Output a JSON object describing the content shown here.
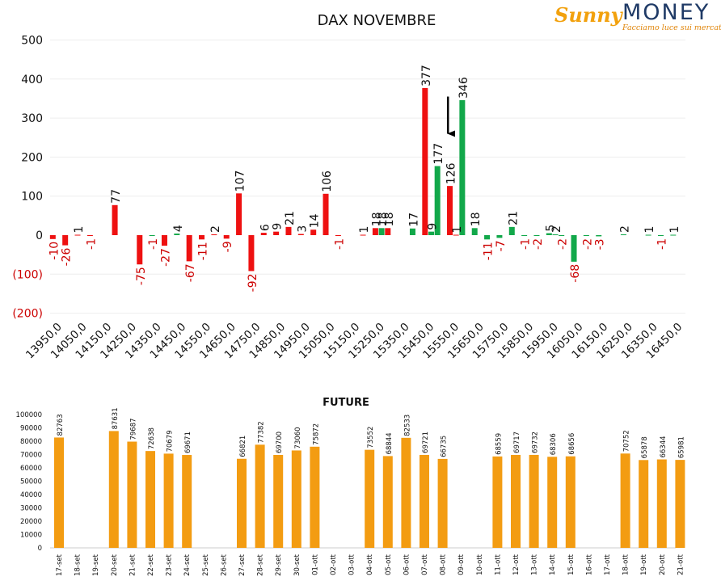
{
  "logo": {
    "brand_left": "Sunny",
    "brand_right": "MONEY",
    "tagline": "Facciamo luce sui mercati"
  },
  "colors": {
    "call": "#ee1111",
    "put": "#12a84a",
    "future": "#f39c12",
    "negative_axis": "#cc0000",
    "arrow": "#000000"
  },
  "chart_data": [
    {
      "type": "bar",
      "title": "DAX NOVEMBRE",
      "categories": [
        "13950,0",
        "14050,0",
        "14150,0",
        "14250,0",
        "14350,0",
        "14450,0",
        "14550,0",
        "14650,0",
        "14750,0",
        "14850,0",
        "14950,0",
        "15050,0",
        "15150,0",
        "15250,0",
        "15350,0",
        "15450,0",
        "15550,0",
        "15650,0",
        "15750,0",
        "15850,0",
        "15950,0",
        "16050,0",
        "16150,0",
        "16250,0",
        "16350,0",
        "16450,0"
      ],
      "y_ticks": [
        "500",
        "400",
        "300",
        "200",
        "100",
        "0",
        "(100)",
        "(200)"
      ],
      "ylim": [
        -200,
        500
      ],
      "grid": true,
      "bars": [
        {
          "i": 0,
          "s": 0,
          "o": -0.25,
          "v": -10,
          "label": "-10",
          "color": "call"
        },
        {
          "i": 0,
          "s": 1,
          "o": 0.25,
          "v": -26,
          "label": "-26",
          "color": "call"
        },
        {
          "i": 1,
          "s": 0,
          "o": -0.25,
          "v": 1,
          "label": "1",
          "color": "call"
        },
        {
          "i": 1,
          "s": 1,
          "o": 0.25,
          "v": -1,
          "label": "-1",
          "color": "call"
        },
        {
          "i": 2,
          "s": 0,
          "o": 0.25,
          "v": 77,
          "label": "77",
          "color": "call"
        },
        {
          "i": 3,
          "s": 0,
          "o": 0.25,
          "v": -75,
          "label": "-75",
          "color": "call"
        },
        {
          "i": 4,
          "s": 0,
          "o": -0.25,
          "v": -1,
          "label": "-1",
          "color": "put"
        },
        {
          "i": 4,
          "s": 1,
          "o": 0.25,
          "v": -27,
          "label": "-27",
          "color": "call"
        },
        {
          "i": 5,
          "s": 0,
          "o": -0.25,
          "v": 4,
          "label": "4",
          "color": "put"
        },
        {
          "i": 5,
          "s": 1,
          "o": 0.25,
          "v": -67,
          "label": "-67",
          "color": "call"
        },
        {
          "i": 6,
          "s": 0,
          "o": -0.25,
          "v": -11,
          "label": "-11",
          "color": "call"
        },
        {
          "i": 6,
          "s": 1,
          "o": 0.25,
          "v": 2,
          "label": "2",
          "color": "call"
        },
        {
          "i": 7,
          "s": 0,
          "o": -0.25,
          "v": -9,
          "label": "-9",
          "color": "call"
        },
        {
          "i": 7,
          "s": 1,
          "o": 0.25,
          "v": 107,
          "label": "107",
          "color": "call"
        },
        {
          "i": 8,
          "s": 0,
          "o": -0.25,
          "v": -92,
          "label": "-92",
          "color": "call"
        },
        {
          "i": 8,
          "s": 1,
          "o": 0.25,
          "v": 6,
          "label": "6",
          "color": "call"
        },
        {
          "i": 9,
          "s": 0,
          "o": -0.25,
          "v": 9,
          "label": "9",
          "color": "call"
        },
        {
          "i": 9,
          "s": 1,
          "o": 0.25,
          "v": 21,
          "label": "21",
          "color": "call"
        },
        {
          "i": 10,
          "s": 0,
          "o": -0.25,
          "v": 3,
          "label": "3",
          "color": "call"
        },
        {
          "i": 10,
          "s": 1,
          "o": 0.25,
          "v": 14,
          "label": "14",
          "color": "call"
        },
        {
          "i": 11,
          "s": 0,
          "o": -0.25,
          "v": 106,
          "label": "106",
          "color": "call"
        },
        {
          "i": 11,
          "s": 1,
          "o": 0.25,
          "v": -1,
          "label": "-1",
          "color": "call"
        },
        {
          "i": 12,
          "s": 1,
          "o": 0.25,
          "v": 1,
          "label": "1",
          "color": "call"
        },
        {
          "i": 13,
          "s": 0,
          "o": -0.25,
          "v": 18,
          "label": "18",
          "color": "call"
        },
        {
          "i": 13,
          "s": 1,
          "o": 0.0,
          "v": 18,
          "label": "18",
          "color": "put"
        },
        {
          "i": 13,
          "s": 2,
          "o": 0.25,
          "v": 18,
          "label": "18",
          "color": "call"
        },
        {
          "i": 14,
          "s": 0,
          "o": 0.25,
          "v": 17,
          "label": "17",
          "color": "put"
        },
        {
          "i": 15,
          "s": 0,
          "o": -0.25,
          "v": 377,
          "label": "377",
          "color": "call"
        },
        {
          "i": 15,
          "s": 1,
          "o": 0.0,
          "v": 9,
          "label": "9",
          "color": "put"
        },
        {
          "i": 15,
          "s": 2,
          "o": 0.25,
          "v": 177,
          "label": "177",
          "color": "put"
        },
        {
          "i": 16,
          "s": 0,
          "o": -0.25,
          "v": 126,
          "label": "126",
          "color": "call"
        },
        {
          "i": 16,
          "s": 1,
          "o": 0.0,
          "v": 1,
          "label": "1",
          "color": "call"
        },
        {
          "i": 16,
          "s": 2,
          "o": 0.25,
          "v": 346,
          "label": "346",
          "color": "put"
        },
        {
          "i": 17,
          "s": 0,
          "o": -0.25,
          "v": 18,
          "label": "18",
          "color": "put"
        },
        {
          "i": 17,
          "s": 1,
          "o": 0.25,
          "v": -11,
          "label": "-11",
          "color": "put"
        },
        {
          "i": 18,
          "s": 0,
          "o": -0.25,
          "v": -7,
          "label": "-7",
          "color": "put"
        },
        {
          "i": 18,
          "s": 1,
          "o": 0.25,
          "v": 21,
          "label": "21",
          "color": "put"
        },
        {
          "i": 19,
          "s": 0,
          "o": -0.25,
          "v": -1,
          "label": "-1",
          "color": "put"
        },
        {
          "i": 19,
          "s": 1,
          "o": 0.25,
          "v": -2,
          "label": "-2",
          "color": "put"
        },
        {
          "i": 20,
          "s": 0,
          "o": -0.25,
          "v": 5,
          "label": "5",
          "color": "put"
        },
        {
          "i": 20,
          "s": 1,
          "o": 0.0,
          "v": 2,
          "label": "2",
          "color": "put"
        },
        {
          "i": 20,
          "s": 2,
          "o": 0.25,
          "v": -2,
          "label": "-2",
          "color": "put"
        },
        {
          "i": 21,
          "s": 0,
          "o": -0.25,
          "v": -68,
          "label": "-68",
          "color": "put"
        },
        {
          "i": 21,
          "s": 1,
          "o": 0.25,
          "v": -2,
          "label": "-2",
          "color": "put"
        },
        {
          "i": 22,
          "s": 0,
          "o": -0.25,
          "v": -3,
          "label": "-3",
          "color": "put"
        },
        {
          "i": 23,
          "s": 0,
          "o": -0.25,
          "v": 2,
          "label": "2",
          "color": "put"
        },
        {
          "i": 24,
          "s": 0,
          "o": -0.25,
          "v": 1,
          "label": "1",
          "color": "put"
        },
        {
          "i": 24,
          "s": 1,
          "o": 0.25,
          "v": -1,
          "label": "-1",
          "color": "put"
        },
        {
          "i": 25,
          "s": 0,
          "o": -0.25,
          "v": 1,
          "label": "1",
          "color": "put"
        }
      ],
      "annotations": [
        {
          "type": "arrow",
          "strike": "15550,0",
          "from": 355,
          "to": 260
        }
      ]
    },
    {
      "type": "bar",
      "title": "FUTURE",
      "categories": [
        "17-set",
        "18-set",
        "19-set",
        "20-set",
        "21-set",
        "22-set",
        "23-set",
        "24-set",
        "25-set",
        "26-set",
        "27-set",
        "28-set",
        "29-set",
        "30-set",
        "01-ott",
        "02-ott",
        "03-ott",
        "04-ott",
        "05-ott",
        "06-ott",
        "07-ott",
        "08-ott",
        "09-ott",
        "10-ott",
        "11-ott",
        "12-ott",
        "13-ott",
        "14-ott",
        "15-ott",
        "16-ott",
        "17-ott",
        "18-ott",
        "19-ott",
        "20-ott",
        "21-ott"
      ],
      "values": [
        82763,
        null,
        null,
        87631,
        79687,
        72638,
        70679,
        69671,
        null,
        null,
        66821,
        77382,
        69700,
        73060,
        75872,
        null,
        null,
        73552,
        68844,
        82533,
        69721,
        66735,
        null,
        null,
        68559,
        69717,
        69732,
        68306,
        68656,
        null,
        null,
        70752,
        65878,
        66344,
        65981
      ],
      "labels": [
        "82763",
        "",
        "",
        "87631",
        "79687",
        "72638",
        "70679",
        "69671",
        "",
        "",
        "66821",
        "77382",
        "69700",
        "73060",
        "75872",
        "",
        "",
        "73552",
        "68844",
        "82533",
        "69721",
        "66735",
        "",
        "",
        "68559",
        "69717",
        "69732",
        "68306",
        "68656",
        "",
        "",
        "70752",
        "65878",
        "66344",
        "65981"
      ],
      "y_ticks": [
        "100000",
        "90000",
        "80000",
        "70000",
        "60000",
        "50000",
        "40000",
        "30000",
        "20000",
        "10000",
        "0"
      ],
      "ylim": [
        0,
        100000
      ]
    }
  ]
}
